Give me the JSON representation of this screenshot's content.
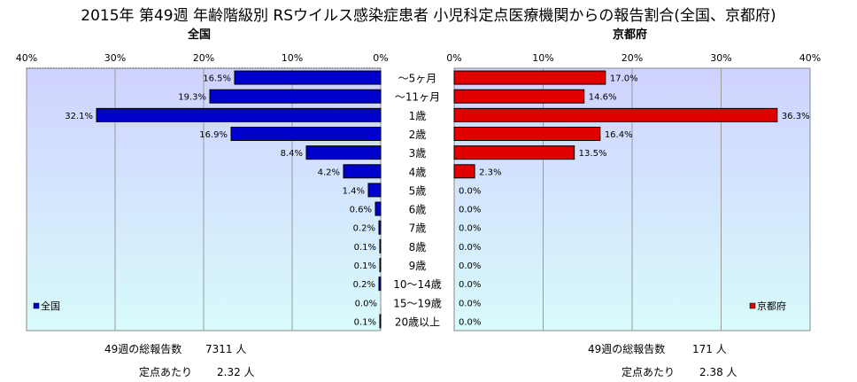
{
  "title": "2015年 第49週 年齢階級別 RSウイルス感染症患者 小児科定点医療機関からの報告割合(全国、京都府)",
  "left_heading": "全国",
  "right_heading": "京都府",
  "colors": {
    "national": "#0000cc",
    "kyoto": "#e00000",
    "plot_top": "#cfd2ff",
    "plot_bottom": "#d8fbfb"
  },
  "chart_data": [
    {
      "type": "bar",
      "orientation": "horizontal",
      "direction": "right-to-left",
      "subtitle": "全国",
      "xlim": [
        0,
        40
      ],
      "ticks": [
        "40%",
        "30%",
        "20%",
        "10%",
        "0%"
      ],
      "categories": [
        "～5ヶ月",
        "～11ヶ月",
        "1歳",
        "2歳",
        "3歳",
        "4歳",
        "5歳",
        "6歳",
        "7歳",
        "8歳",
        "9歳",
        "10～14歳",
        "15～19歳",
        "20歳以上"
      ],
      "series": [
        {
          "name": "全国",
          "values": [
            16.5,
            19.3,
            32.1,
            16.9,
            8.4,
            4.2,
            1.4,
            0.6,
            0.2,
            0.1,
            0.1,
            0.2,
            0.0,
            0.1
          ]
        }
      ],
      "data_labels": [
        "16.5%",
        "19.3%",
        "32.1%",
        "16.9%",
        "8.4%",
        "4.2%",
        "1.4%",
        "0.6%",
        "0.2%",
        "0.1%",
        "0.1%",
        "0.2%",
        "0.0%",
        "0.1%"
      ],
      "legend": "bottom-left",
      "grid": true
    },
    {
      "type": "bar",
      "orientation": "horizontal",
      "direction": "left-to-right",
      "subtitle": "京都府",
      "xlim": [
        0,
        40
      ],
      "ticks": [
        "0%",
        "10%",
        "20%",
        "30%",
        "40%"
      ],
      "categories": [
        "～5ヶ月",
        "～11ヶ月",
        "1歳",
        "2歳",
        "3歳",
        "4歳",
        "5歳",
        "6歳",
        "7歳",
        "8歳",
        "9歳",
        "10～14歳",
        "15～19歳",
        "20歳以上"
      ],
      "series": [
        {
          "name": "京都府",
          "values": [
            17.0,
            14.6,
            36.3,
            16.4,
            13.5,
            2.3,
            0.0,
            0.0,
            0.0,
            0.0,
            0.0,
            0.0,
            0.0,
            0.0
          ]
        }
      ],
      "data_labels": [
        "17.0%",
        "14.6%",
        "36.3%",
        "16.4%",
        "13.5%",
        "2.3%",
        "0.0%",
        "0.0%",
        "0.0%",
        "0.0%",
        "0.0%",
        "0.0%",
        "0.0%",
        "0.0%"
      ],
      "legend": "bottom-right",
      "grid": true
    }
  ],
  "footer": {
    "left": {
      "total_label": "49週の総報告数",
      "total_value": "7311 人",
      "per_label": "定点あたり",
      "per_value": "2.32 人"
    },
    "right": {
      "total_label": "49週の総報告数",
      "total_value": "171 人",
      "per_label": "定点あたり",
      "per_value": "2.38 人"
    }
  }
}
